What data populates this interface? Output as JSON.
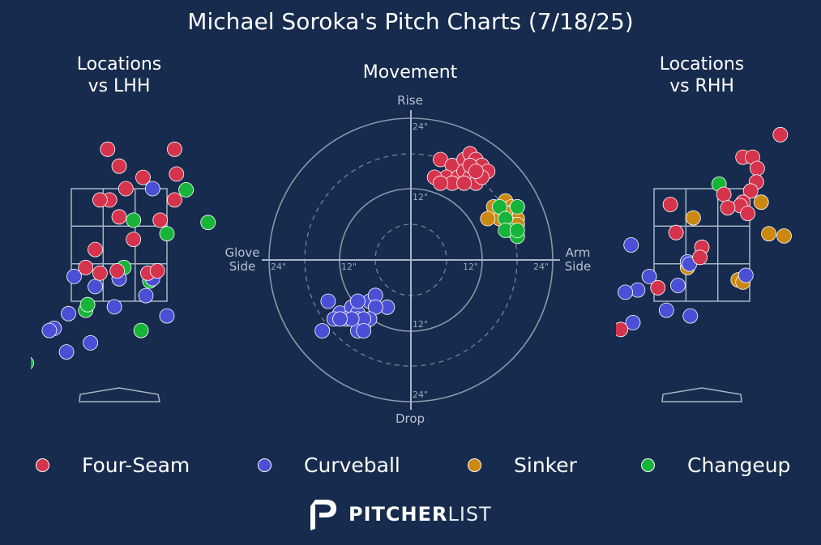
{
  "title": "Michael Soroka's Pitch Charts (7/18/25)",
  "panels": {
    "lhh": {
      "title_line1": "Locations",
      "title_line2": "vs LHH"
    },
    "movement": {
      "title": "Movement",
      "label_top": "Rise",
      "label_bottom": "Drop",
      "label_left_line1": "Glove",
      "label_left_line2": "Side",
      "label_right_line1": "Arm",
      "label_right_line2": "Side",
      "ring_labels": [
        "12\"",
        "24\""
      ]
    },
    "rhh": {
      "title_line1": "Locations",
      "title_line2": "vs RHH"
    }
  },
  "legend": [
    {
      "key": "four_seam",
      "label": "Four-Seam",
      "color": "#d6334d"
    },
    {
      "key": "curveball",
      "label": "Curveball",
      "color": "#4b4fd6"
    },
    {
      "key": "sinker",
      "label": "Sinker",
      "color": "#cc8811"
    },
    {
      "key": "changeup",
      "label": "Changeup",
      "color": "#16b53a"
    }
  ],
  "brand": {
    "bold": "PITCHER",
    "light": "LIST",
    "logo_icon": "pitcherlist-p-logo"
  },
  "chart_data": [
    {
      "type": "scatter",
      "name": "Locations vs LHH",
      "units": "zone grid fraction (x: 0=left edge,1=right edge of zone; y: 0=bottom,1=top of zone)",
      "points": {
        "four_seam": [
          [
            0.38,
            1.35
          ],
          [
            0.5,
            1.2
          ],
          [
            0.75,
            1.1
          ],
          [
            0.57,
            1.0
          ],
          [
            1.08,
            0.9
          ],
          [
            0.93,
            0.72
          ],
          [
            0.65,
            0.55
          ],
          [
            0.3,
            0.25
          ],
          [
            0.15,
            0.3
          ],
          [
            1.1,
            1.13
          ],
          [
            0.8,
            0.25
          ],
          [
            0.48,
            0.27
          ],
          [
            0.25,
            0.46
          ],
          [
            0.9,
            0.27
          ],
          [
            0.4,
            0.9
          ],
          [
            0.3,
            0.9
          ],
          [
            1.08,
            1.35
          ],
          [
            0.5,
            0.75
          ]
        ],
        "curveball": [
          [
            0.85,
            1.0
          ],
          [
            0.03,
            0.22
          ],
          [
            0.25,
            0.13
          ],
          [
            1.0,
            -0.13
          ],
          [
            0.45,
            -0.05
          ],
          [
            0.5,
            0.2
          ],
          [
            0.85,
            0.2
          ],
          [
            0.78,
            0.05
          ],
          [
            -0.03,
            -0.11
          ],
          [
            -0.18,
            -0.24
          ],
          [
            -0.23,
            -0.26
          ],
          [
            -0.05,
            -0.45
          ],
          [
            0.2,
            -0.37
          ]
        ],
        "changeup": [
          [
            1.2,
            0.99
          ],
          [
            1.43,
            0.7
          ],
          [
            0.65,
            0.72
          ],
          [
            1.0,
            0.6
          ],
          [
            0.55,
            0.3
          ],
          [
            0.82,
            0.18
          ],
          [
            0.15,
            -0.08
          ],
          [
            0.17,
            -0.03
          ],
          [
            0.73,
            -0.26
          ],
          [
            -0.47,
            -0.55
          ]
        ]
      }
    },
    {
      "type": "scatter",
      "name": "Movement",
      "units": "inches (x: negative = glove side, positive = arm side; y: positive = rise, negative = drop)",
      "xlim": [
        -24,
        24
      ],
      "ylim": [
        -24,
        24
      ],
      "points": {
        "four_seam": [
          [
            5,
            17
          ],
          [
            7,
            16
          ],
          [
            9,
            17
          ],
          [
            10,
            18
          ],
          [
            11,
            17
          ],
          [
            12,
            16
          ],
          [
            13,
            15
          ],
          [
            6,
            14
          ],
          [
            8,
            14
          ],
          [
            9,
            15
          ],
          [
            10,
            14
          ],
          [
            11,
            13
          ],
          [
            12,
            14
          ],
          [
            4,
            14
          ],
          [
            7,
            13
          ],
          [
            5,
            13
          ],
          [
            10,
            16
          ],
          [
            11,
            15
          ],
          [
            9,
            13
          ]
        ],
        "sinker": [
          [
            14,
            9
          ],
          [
            16,
            10
          ],
          [
            17,
            9
          ],
          [
            18,
            9
          ],
          [
            15,
            7
          ],
          [
            17,
            8
          ],
          [
            18,
            7
          ],
          [
            13,
            7
          ],
          [
            16,
            8
          ],
          [
            17,
            6
          ],
          [
            18,
            6
          ]
        ],
        "changeup": [
          [
            15,
            9
          ],
          [
            16,
            7
          ],
          [
            18,
            9
          ],
          [
            17,
            5
          ],
          [
            18,
            4
          ],
          [
            16,
            5
          ],
          [
            18,
            5
          ]
        ],
        "curveball": [
          [
            -14,
            -7
          ],
          [
            -12,
            -9
          ],
          [
            -10,
            -8
          ],
          [
            -9,
            -9
          ],
          [
            -9,
            -10
          ],
          [
            -7,
            -7
          ],
          [
            -6,
            -6
          ],
          [
            -4,
            -8
          ],
          [
            -6,
            -8
          ],
          [
            -8,
            -11
          ],
          [
            -9,
            -12
          ],
          [
            -13,
            -10
          ],
          [
            -15,
            -12
          ],
          [
            -11,
            -10
          ],
          [
            -7,
            -10
          ],
          [
            -8,
            -10
          ],
          [
            -9,
            -7
          ],
          [
            -10,
            -10
          ],
          [
            -12,
            -10
          ],
          [
            -8,
            -12
          ]
        ]
      }
    },
    {
      "type": "scatter",
      "name": "Locations vs RHH",
      "units": "zone grid fraction (x: 0=left edge,1=right edge of zone; y: 0=bottom,1=top of zone)",
      "points": {
        "four_seam": [
          [
            1.32,
            1.48
          ],
          [
            0.93,
            1.28
          ],
          [
            1.03,
            1.28
          ],
          [
            1.08,
            1.18
          ],
          [
            1.07,
            1.06
          ],
          [
            1.01,
            0.98
          ],
          [
            0.93,
            0.88
          ],
          [
            0.73,
            0.95
          ],
          [
            0.9,
            0.85
          ],
          [
            0.77,
            0.83
          ],
          [
            0.98,
            0.78
          ],
          [
            0.17,
            0.86
          ],
          [
            0.23,
            0.61
          ],
          [
            0.5,
            0.48
          ],
          [
            0.48,
            0.39
          ],
          [
            0.04,
            0.12
          ],
          [
            -0.35,
            -0.25
          ]
        ],
        "curveball": [
          [
            -0.24,
            0.5
          ],
          [
            0.35,
            0.35
          ],
          [
            0.25,
            0.14
          ],
          [
            -0.05,
            0.22
          ],
          [
            -0.17,
            0.1
          ],
          [
            -0.3,
            0.08
          ],
          [
            0.37,
            0.33
          ],
          [
            0.96,
            0.23
          ],
          [
            0.38,
            -0.13
          ],
          [
            0.13,
            -0.08
          ],
          [
            -0.22,
            -0.19
          ]
        ],
        "sinker": [
          [
            1.12,
            0.88
          ],
          [
            0.41,
            0.74
          ],
          [
            1.2,
            0.6
          ],
          [
            0.88,
            0.19
          ],
          [
            0.93,
            0.17
          ],
          [
            0.35,
            0.3
          ],
          [
            1.36,
            0.58
          ]
        ],
        "changeup": [
          [
            0.68,
            1.04
          ]
        ]
      }
    }
  ]
}
